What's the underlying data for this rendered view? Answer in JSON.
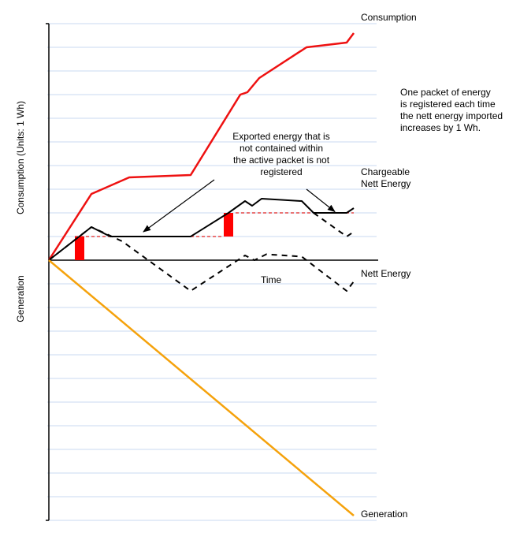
{
  "chart_data": {
    "type": "line",
    "title": "",
    "xlabel": "Time",
    "ylabel_positive": "Consumption (Units: 1 Wh)",
    "ylabel_negative": "Generation",
    "grid": true,
    "ylim": [
      -11,
      10
    ],
    "xlim": [
      0,
      13
    ],
    "series": [
      {
        "name": "Consumption",
        "color": "#ee1111",
        "style": "solid",
        "x": [
          0,
          1.8,
          3.4,
          6.0,
          8.1,
          8.4,
          8.9,
          10.9,
          12.6,
          12.9
        ],
        "y": [
          0,
          2.8,
          3.5,
          3.6,
          7.0,
          7.1,
          7.7,
          9.0,
          9.2,
          9.6
        ]
      },
      {
        "name": "Chargeable Nett Energy",
        "color": "#000000",
        "style": "solid",
        "x": [
          0,
          1.8,
          2.6,
          6.0,
          7.6,
          8.3,
          8.6,
          9.0,
          10.7,
          11.2,
          12.6,
          12.9
        ],
        "y": [
          0,
          1.4,
          1.0,
          1.0,
          2.0,
          2.5,
          2.3,
          2.6,
          2.5,
          2.0,
          2.0,
          2.2
        ]
      },
      {
        "name": "Nett Energy",
        "color": "#000000",
        "style": "dashed",
        "x": [
          0,
          1.8,
          3.1,
          6.0,
          8.3,
          8.7,
          9.2,
          10.7,
          12.6,
          12.9
        ],
        "y": [
          0,
          1.4,
          0.8,
          -1.3,
          0.2,
          0.0,
          0.25,
          0.15,
          -1.3,
          -0.9
        ]
      },
      {
        "name": "Generation",
        "color": "#f5a20c",
        "style": "solid",
        "x": [
          0,
          12.9
        ],
        "y": [
          0,
          -10.8
        ]
      }
    ],
    "secondary": [
      {
        "name": "Chargeable Nett Energy",
        "color": "#000000",
        "style": "dashed",
        "x": [
          11.2,
          12.6,
          12.9
        ],
        "y": [
          2.0,
          1.0,
          1.2
        ]
      }
    ],
    "reference_lines": [
      {
        "color": "#dd2222",
        "style": "dashed",
        "x": [
          1.1,
          7.4
        ],
        "y": [
          1.0,
          1.0
        ]
      },
      {
        "color": "#dd2222",
        "style": "dashed",
        "x": [
          7.9,
          12.9
        ],
        "y": [
          2.0,
          2.0
        ]
      }
    ],
    "packets": [
      {
        "color": "#ff0000",
        "x": [
          1.1,
          1.5
        ],
        "y": [
          0,
          1
        ]
      },
      {
        "color": "#ff0000",
        "x": [
          7.4,
          7.8
        ],
        "y": [
          1,
          2
        ]
      }
    ],
    "annotations": [
      {
        "text": "Consumption"
      },
      {
        "text": "One packet of energy\nis registered each time\nthe nett energy imported\nincreases by 1 Wh."
      },
      {
        "text": "Exported energy that is\nnot contained within\nthe active packet is not\nregistered"
      },
      {
        "text": "Chargeable\nNett Energy"
      },
      {
        "text": "Nett Energy"
      },
      {
        "text": "Generation"
      }
    ],
    "arrows": [
      {
        "from": [
          7.0,
          3.4
        ],
        "to": [
          4.0,
          1.2
        ]
      },
      {
        "from": [
          10.9,
          3.0
        ],
        "to": [
          12.1,
          2.05
        ]
      }
    ]
  }
}
